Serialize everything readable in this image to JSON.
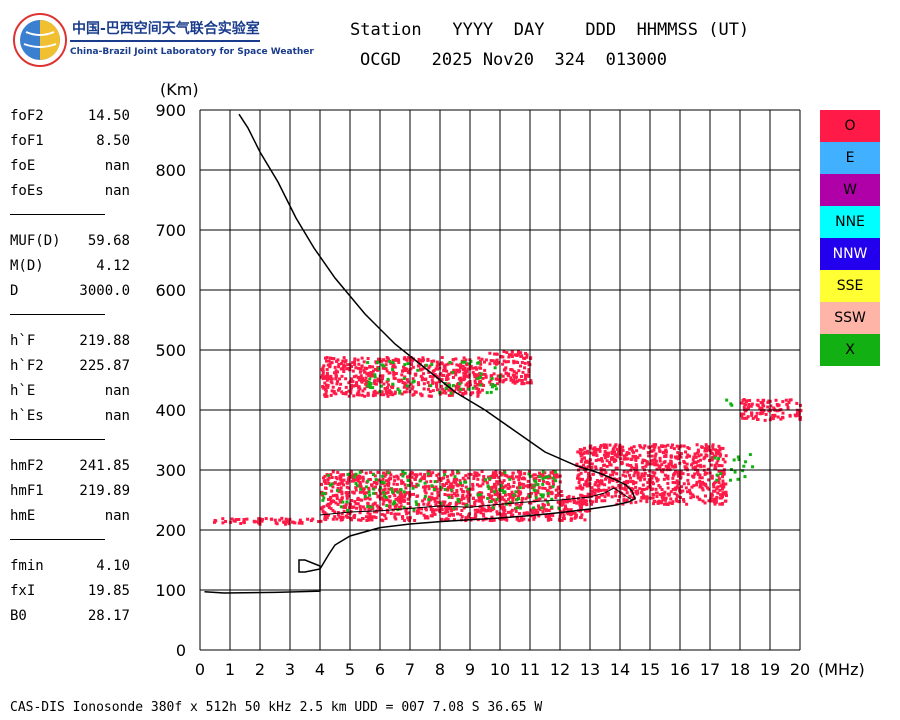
{
  "logo": {
    "title": "中国-巴西空间天气联合实验室",
    "subtitle": "China-Brazil Joint Laboratory for Space Weather"
  },
  "header": {
    "line1": "Station   YYYY  DAY    DDD  HHMMSS (UT)",
    "line2": "OCGD   2025 Nov20  324  013000"
  },
  "params": [
    {
      "label": "foF2",
      "value": "14.50"
    },
    {
      "label": "foF1",
      "value": "8.50"
    },
    {
      "label": "foE",
      "value": "nan"
    },
    {
      "label": "foEs",
      "value": "nan"
    },
    {
      "sep": true
    },
    {
      "label": "MUF(D)",
      "value": "59.68"
    },
    {
      "label": "M(D)",
      "value": "4.12"
    },
    {
      "label": "D",
      "value": "3000.0"
    },
    {
      "sep": true
    },
    {
      "label": "h`F",
      "value": "219.88"
    },
    {
      "label": "h`F2",
      "value": "225.87"
    },
    {
      "label": "h`E",
      "value": "nan"
    },
    {
      "label": "h`Es",
      "value": "nan"
    },
    {
      "sep": true
    },
    {
      "label": "hmF2",
      "value": "241.85"
    },
    {
      "label": "hmF1",
      "value": "219.89"
    },
    {
      "label": "hmE",
      "value": "nan"
    },
    {
      "sep": true
    },
    {
      "label": "fmin",
      "value": "4.10"
    },
    {
      "label": "fxI",
      "value": "19.85"
    },
    {
      "label": "B0",
      "value": "28.17"
    }
  ],
  "legend": [
    {
      "label": "O",
      "color": "#ff1a47"
    },
    {
      "label": "E",
      "color": "#40b0ff"
    },
    {
      "label": "W",
      "color": "#b000a8"
    },
    {
      "label": "NNE",
      "color": "#00ffff"
    },
    {
      "label": "NNW",
      "color": "#2200ee"
    },
    {
      "label": "SSE",
      "color": "#ffff33"
    },
    {
      "label": "SSW",
      "color": "#ffb4a8"
    },
    {
      "label": "X",
      "color": "#12b012"
    }
  ],
  "footer": "CAS-DIS Ionosonde 380f x 512h 50 kHz 2.5 km UDD = 007 7.08 S 36.65 W",
  "chart_data": {
    "type": "scatter",
    "xlabel": "(MHz)",
    "ylabel": "(Km)",
    "xlim": [
      0,
      20
    ],
    "ylim": [
      0,
      900
    ],
    "xticks": [
      0,
      1,
      2,
      3,
      4,
      5,
      6,
      7,
      8,
      9,
      10,
      11,
      12,
      13,
      14,
      15,
      16,
      17,
      18,
      19,
      20
    ],
    "yticks": [
      0,
      100,
      200,
      300,
      400,
      500,
      600,
      700,
      800,
      900
    ],
    "grid": true,
    "legend_position": "right",
    "traces": [
      {
        "name": "",
        "color": "#000000",
        "points": [
          [
            0.15,
            97
          ],
          [
            0.8,
            95
          ],
          [
            2.5,
            96
          ],
          [
            4.0,
            98
          ],
          [
            4.0,
            100
          ],
          [
            4.0,
            140
          ],
          [
            3.5,
            150
          ],
          [
            3.3,
            150
          ],
          [
            3.3,
            130
          ],
          [
            3.5,
            130
          ],
          [
            4.0,
            135
          ],
          [
            4.3,
            160
          ],
          [
            4.5,
            175
          ],
          [
            5.0,
            190
          ],
          [
            6.0,
            204
          ],
          [
            7.0,
            210
          ],
          [
            8.0,
            214
          ],
          [
            9.0,
            217
          ],
          [
            10.0,
            220
          ],
          [
            11.0,
            224
          ],
          [
            12.0,
            229
          ],
          [
            13.0,
            235
          ],
          [
            13.8,
            241
          ],
          [
            14.3,
            247
          ],
          [
            14.5,
            252
          ],
          [
            14.4,
            265
          ],
          [
            14.2,
            275
          ],
          [
            13.8,
            285
          ],
          [
            13.3,
            295
          ],
          [
            12.5,
            308
          ],
          [
            11.5,
            330
          ],
          [
            10.5,
            365
          ],
          [
            9.5,
            400
          ],
          [
            8.5,
            430
          ],
          [
            7.5,
            470
          ],
          [
            6.5,
            510
          ],
          [
            5.5,
            560
          ],
          [
            4.5,
            620
          ],
          [
            3.8,
            670
          ],
          [
            3.2,
            720
          ],
          [
            2.6,
            780
          ],
          [
            2.0,
            830
          ],
          [
            1.6,
            870
          ],
          [
            1.3,
            893
          ]
        ]
      },
      {
        "name": "",
        "color": "#000000",
        "points": [
          [
            4.0,
            225
          ],
          [
            5.0,
            230
          ],
          [
            6.0,
            232
          ],
          [
            7.0,
            236
          ],
          [
            8.0,
            240
          ],
          [
            9.0,
            238
          ],
          [
            10.0,
            243
          ],
          [
            11.0,
            247
          ],
          [
            12.0,
            250
          ],
          [
            13.0,
            255
          ],
          [
            13.5,
            262
          ],
          [
            13.8,
            270
          ],
          [
            14.1,
            260
          ],
          [
            14.4,
            250
          ]
        ]
      }
    ],
    "o_mode_regions": [
      {
        "x": [
          0.4,
          4.0
        ],
        "y": [
          212,
          222
        ]
      },
      {
        "x": [
          4.0,
          13.0
        ],
        "y": [
          218,
          260
        ]
      },
      {
        "x": [
          4.0,
          12.0
        ],
        "y": [
          260,
          300
        ]
      },
      {
        "x": [
          12.5,
          17.5
        ],
        "y": [
          245,
          345
        ]
      },
      {
        "x": [
          4.0,
          9.5
        ],
        "y": [
          425,
          490
        ]
      },
      {
        "x": [
          9.6,
          11.0
        ],
        "y": [
          445,
          500
        ]
      },
      {
        "x": [
          18.0,
          20.0
        ],
        "y": [
          385,
          420
        ]
      }
    ],
    "x_mode_regions": [
      {
        "x": [
          4.0,
          12.0
        ],
        "y": [
          235,
          300
        ]
      },
      {
        "x": [
          5.5,
          10.0
        ],
        "y": [
          430,
          485
        ]
      },
      {
        "x": [
          17.0,
          18.5
        ],
        "y": [
          285,
          330
        ]
      },
      {
        "x": [
          17.5,
          18.2
        ],
        "y": [
          405,
          420
        ]
      }
    ]
  }
}
